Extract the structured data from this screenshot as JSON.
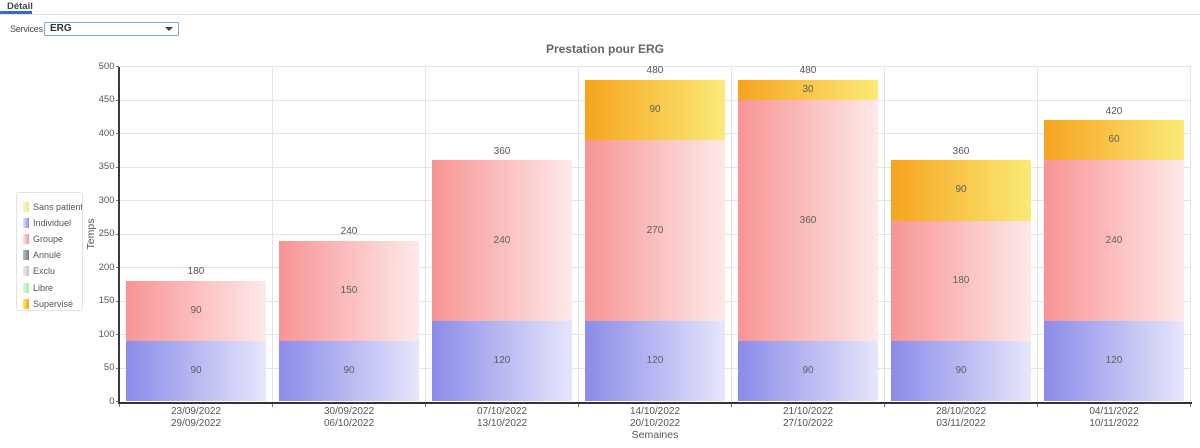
{
  "tabbar": {
    "detail_tab_label": "Détail"
  },
  "filters": {
    "services_label": "Services",
    "services_value": "ERG"
  },
  "accent_colors": {
    "tab_underline": "#3767d8",
    "select_border": "#7fa7d8"
  },
  "chart_data": {
    "type": "bar",
    "stacked": true,
    "title": "Prestation pour ERG",
    "xlabel": "Semaines",
    "ylabel": "Temps",
    "ylim": [
      0,
      500
    ],
    "ytick_step": 50,
    "grid": true,
    "legend_position": "left",
    "categories": [
      {
        "line1": "23/09/2022",
        "line2": "29/09/2022"
      },
      {
        "line1": "30/09/2022",
        "line2": "06/10/2022"
      },
      {
        "line1": "07/10/2022",
        "line2": "13/10/2022"
      },
      {
        "line1": "14/10/2022",
        "line2": "20/10/2022"
      },
      {
        "line1": "21/10/2022",
        "line2": "27/10/2022"
      },
      {
        "line1": "28/10/2022",
        "line2": "03/11/2022"
      },
      {
        "line1": "04/11/2022",
        "line2": "10/11/2022"
      }
    ],
    "series": [
      {
        "name": "Sans patient",
        "color": "#f3e58a",
        "light": "#fbf5c9",
        "values": [
          0,
          0,
          0,
          0,
          0,
          0,
          0
        ]
      },
      {
        "name": "Individuel",
        "color": "#8b8be9",
        "light": "#e6e6fb",
        "values": [
          90,
          90,
          120,
          120,
          90,
          90,
          120
        ]
      },
      {
        "name": "Groupe",
        "color": "#f89494",
        "light": "#fee9e9",
        "values": [
          90,
          150,
          240,
          270,
          360,
          180,
          240
        ]
      },
      {
        "name": "Annulé",
        "color": "#7a7a7a",
        "light": "#c0c0c0",
        "values": [
          0,
          0,
          0,
          0,
          0,
          0,
          0
        ]
      },
      {
        "name": "Exclu",
        "color": "#c4c4c4",
        "light": "#f0f0f0",
        "values": [
          0,
          0,
          0,
          0,
          0,
          0,
          0
        ]
      },
      {
        "name": "Libre",
        "color": "#a0eda0",
        "light": "#ddf9dd",
        "values": [
          0,
          0,
          0,
          0,
          0,
          0,
          0
        ]
      },
      {
        "name": "Supervisé",
        "color": "#f6a41f",
        "light": "#fbea78",
        "values": [
          0,
          0,
          0,
          90,
          30,
          90,
          60
        ]
      }
    ],
    "totals": [
      180,
      240,
      360,
      480,
      480,
      360,
      420
    ]
  }
}
